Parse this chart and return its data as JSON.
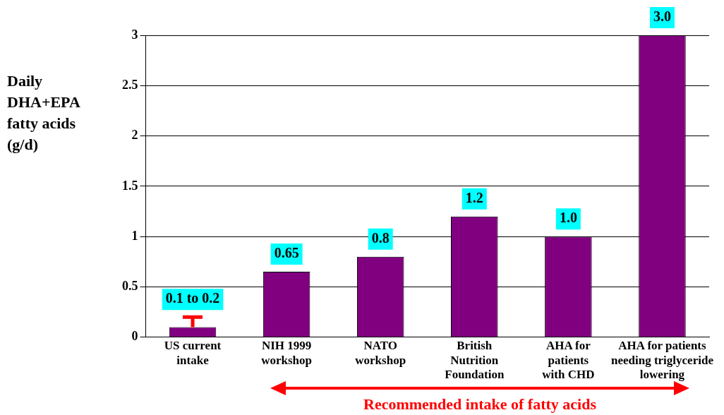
{
  "chart_data": {
    "type": "bar",
    "ylabel": "Daily\nDHA+EPA\nfatty acids\n(g/d)",
    "categories": [
      "US current\nintake",
      "NIH 1999\nworkshop",
      "NATO\nworkshop",
      "British\nNutrition\nFoundation",
      "AHA for\npatients\nwith CHD",
      "AHA for patients\nneeding triglyceride\nlowering"
    ],
    "values": [
      0.1,
      0.65,
      0.8,
      1.2,
      1.0,
      3.0
    ],
    "errors": [
      [
        0.1,
        0.2
      ],
      null,
      null,
      null,
      null,
      null
    ],
    "value_labels": [
      "0.1 to 0.2",
      "0.65",
      "0.8",
      "1.2",
      "1.0",
      "3.0"
    ],
    "color": "#800080",
    "ylim": [
      0,
      3
    ],
    "yticks": [
      0,
      0.5,
      1,
      1.5,
      2,
      2.5,
      3
    ],
    "grid": "y",
    "legend": false,
    "annotations": [
      "Recommended intake of fatty acids"
    ]
  }
}
